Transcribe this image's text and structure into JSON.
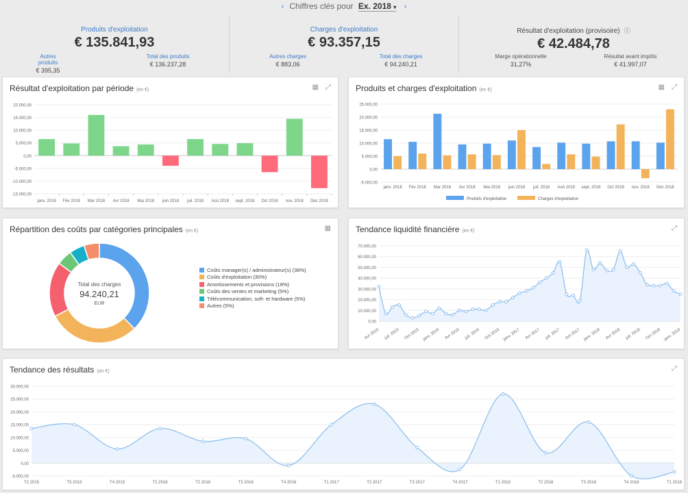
{
  "header": {
    "label": "Chiffres clés pour",
    "year": "Ex. 2018",
    "year_caret": "▾",
    "prev": "‹",
    "next": "›"
  },
  "kpis": [
    {
      "title": "Produits d'exploitation",
      "value": "€ 135.841,93",
      "sub_left_label": "Autres produits",
      "sub_left_value": "€ 395,35",
      "sub_right_label": "Total des produits",
      "sub_right_value": "€ 136.237,28"
    },
    {
      "title": "Charges d'exploitation",
      "value": "€ 93.357,15",
      "sub_left_label": "Autres charges",
      "sub_left_value": "€ 883,06",
      "sub_right_label": "Total des charges",
      "sub_right_value": "€ 94.240,21"
    },
    {
      "title": "Résultat d'exploitation (provisoire)",
      "value": "€ 42.484,78",
      "sub_left_label": "Marge opérationnelle",
      "sub_left_value": "31,27%",
      "sub_right_label": "Résultat avant impôts",
      "sub_right_value": "€ 41.997,07"
    }
  ],
  "icons": {
    "table": "table-icon",
    "expand": "expand-icon",
    "info": "info-icon"
  },
  "unit": "(en €)",
  "cards": {
    "resultat": {
      "title": "Résultat d'exploitation par période"
    },
    "produits": {
      "title": "Produits et charges d'exploitation"
    },
    "repartition": {
      "title": "Répartition des coûts par catégories principales",
      "center_label": "Total des charges",
      "center_value": "94.240,21",
      "center_unit": "EUR"
    },
    "liquidite": {
      "title": "Tendance liquidité financière"
    },
    "tendance": {
      "title": "Tendance des résultats"
    }
  },
  "chart_data": [
    {
      "id": "resultat",
      "type": "bar",
      "categories": [
        "janv. 2018",
        "Fév 2018",
        "Mar 2018",
        "Avr 2018",
        "Mai 2018",
        "juin 2018",
        "juil. 2018",
        "Aoû 2018",
        "sept. 2018",
        "Oct 2018",
        "nov. 2018",
        "Déc 2018"
      ],
      "values": [
        6500,
        4800,
        16000,
        3700,
        4400,
        -4000,
        6500,
        4600,
        4900,
        -6500,
        14500,
        -12800
      ],
      "ylim": [
        -15000,
        20000
      ],
      "yticks": [
        "20.000,00",
        "15.000,00",
        "10.000,00",
        "5.000,00",
        "0,00",
        "-5.000,00",
        "-10.000,00",
        "-15.000,00"
      ],
      "colors": {
        "positive": "#7ed68b",
        "negative": "#ff6b7a"
      }
    },
    {
      "id": "produits",
      "type": "bar",
      "categories": [
        "janv. 2018",
        "Fév 2018",
        "Mar 2018",
        "Avr 2018",
        "Mai 2018",
        "juin 2018",
        "juil. 2018",
        "Aoû 2018",
        "sept. 2018",
        "Oct 2018",
        "nov. 2018",
        "Déc 2018"
      ],
      "series": [
        {
          "name": "Produits d'exploitation",
          "values": [
            11500,
            10500,
            21300,
            9500,
            9800,
            11000,
            8500,
            10200,
            9800,
            10700,
            10700,
            10200
          ],
          "color": "#5ba3ec"
        },
        {
          "name": "Charges d'exploitation",
          "values": [
            5000,
            6000,
            5300,
            5700,
            5400,
            15000,
            2000,
            5700,
            4800,
            17200,
            -3500,
            23000
          ],
          "color": "#f3b35a"
        }
      ],
      "ylim": [
        -5000,
        25000
      ],
      "yticks": [
        "25.000,00",
        "20.000,00",
        "15.000,00",
        "10.000,00",
        "5.000,00",
        "0,00",
        "-5.000,00"
      ],
      "legend": "bottom"
    },
    {
      "id": "repartition",
      "type": "pie",
      "slices": [
        {
          "name": "Coûts manager(s) / administrateur(s) (38%)",
          "value": 38,
          "color": "#5ba3ec"
        },
        {
          "name": "Coûts d'exploitation (30%)",
          "value": 30,
          "color": "#f3b35a"
        },
        {
          "name": "Amortissements et provisions (18%)",
          "value": 18,
          "color": "#f5606e"
        },
        {
          "name": "Coûts des ventes et marketing (5%)",
          "value": 5,
          "color": "#6dc675"
        },
        {
          "name": "Télécommunication, soft- et hardware (5%)",
          "value": 5,
          "color": "#17b0c8"
        },
        {
          "name": "Autres (5%)",
          "value": 5,
          "color": "#f58d6b"
        }
      ],
      "legend": "right"
    },
    {
      "id": "liquidite",
      "type": "area",
      "xticks": [
        "Avr 2015",
        "juil. 2015",
        "Oct 2015",
        "janv. 2016",
        "Avr 2016",
        "juil. 2016",
        "Oct 2016",
        "janv. 2017",
        "Avr 2017",
        "juil. 2017",
        "Oct 2017",
        "janv. 2018",
        "Avr 2018",
        "juil. 2018",
        "Oct 2018",
        "janv. 2019"
      ],
      "values": [
        32000,
        7000,
        13000,
        15000,
        6000,
        3000,
        5000,
        9000,
        7000,
        12000,
        7000,
        6000,
        10000,
        9000,
        11000,
        11000,
        10000,
        15000,
        18000,
        18000,
        22000,
        26000,
        28000,
        31000,
        36000,
        40000,
        45000,
        55000,
        25000,
        24000,
        19000,
        66000,
        48000,
        54000,
        47000,
        48000,
        65000,
        50000,
        53000,
        45000,
        34000,
        33000,
        33000,
        35000,
        28000,
        25000
      ],
      "ylim": [
        0,
        70000
      ],
      "yticks": [
        "70.000,00",
        "60.000,00",
        "50.000,00",
        "40.000,00",
        "30.000,00",
        "20.000,00",
        "10.000,00",
        "0,00"
      ],
      "color": "#8fbfee"
    },
    {
      "id": "tendance",
      "type": "area",
      "xticks": [
        "T2 2015",
        "T3 2015",
        "T4 2015",
        "T1 2016",
        "T2 2016",
        "T3 2016",
        "T4 2016",
        "T1 2017",
        "T2 2017",
        "T3 2017",
        "T4 2017",
        "T1 2018",
        "T2 2018",
        "T3 2018",
        "T4 2018",
        "T1 2019"
      ],
      "values": [
        13500,
        15000,
        5500,
        13500,
        8500,
        9500,
        -1000,
        15000,
        23000,
        6000,
        -2500,
        27000,
        4000,
        16000,
        -5000,
        -3500
      ],
      "ylim": [
        -5000,
        30000
      ],
      "yticks": [
        "30.000,00",
        "25.000,00",
        "20.000,00",
        "15.000,00",
        "10.000,00",
        "5.000,00",
        "0,00",
        "-5.000,00"
      ],
      "color": "#8fbfee"
    }
  ]
}
